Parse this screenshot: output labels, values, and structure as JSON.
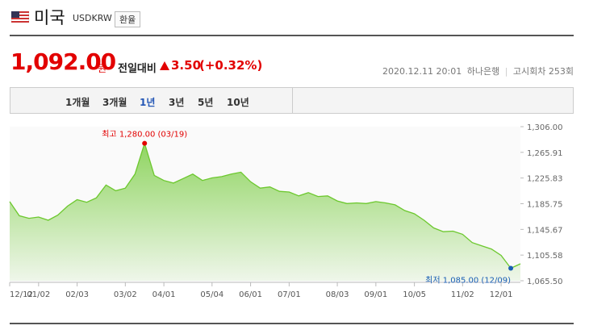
{
  "header": {
    "country": "미국",
    "code": "USDKRW",
    "button": "환율"
  },
  "quote": {
    "price": "1,092.00",
    "unit": "원",
    "change_label": "전일대비",
    "change": "3.50",
    "change_pct": "(+0.32%)"
  },
  "info": {
    "datetime": "2020.12.11 20:01",
    "bank": "하나은행",
    "round": "고시회차 253회"
  },
  "tabs": [
    "1개월",
    "3개월",
    "1년",
    "3년",
    "5년",
    "10년"
  ],
  "selected_tab": "1년",
  "chart_data": {
    "type": "line",
    "categories": [
      "12/12",
      null,
      null,
      "01/02",
      null,
      null,
      null,
      "02/03",
      null,
      null,
      null,
      null,
      "03/02",
      null,
      null,
      null,
      "04/01",
      null,
      null,
      null,
      null,
      "05/04",
      null,
      null,
      null,
      "06/01",
      null,
      null,
      null,
      "07/01",
      null,
      null,
      null,
      null,
      "08/03",
      null,
      null,
      null,
      "09/01",
      null,
      null,
      null,
      "10/05",
      null,
      null,
      null,
      null,
      "11/02",
      null,
      null,
      null,
      "12/01",
      null,
      null
    ],
    "values": [
      1189,
      1167,
      1163,
      1165,
      1160,
      1168,
      1182,
      1192,
      1188,
      1195,
      1215,
      1206,
      1210,
      1232,
      1280,
      1230,
      1222,
      1218,
      1225,
      1232,
      1222,
      1226,
      1228,
      1232,
      1235,
      1220,
      1210,
      1212,
      1205,
      1204,
      1198,
      1203,
      1197,
      1198,
      1190,
      1186,
      1187,
      1186,
      1189,
      1187,
      1184,
      1175,
      1170,
      1160,
      1148,
      1142,
      1143,
      1138,
      1125,
      1120,
      1115,
      1105,
      1085,
      1092
    ],
    "color": "#6cc82e",
    "ylim": [
      1065.5,
      1306
    ],
    "yticks": [
      {
        "value": 1065.5,
        "label": "1,065.50"
      },
      {
        "value": 1105.58,
        "label": "1,105.58"
      },
      {
        "value": 1145.67,
        "label": "1,145.67"
      },
      {
        "value": 1185.75,
        "label": "1,185.75"
      },
      {
        "value": 1225.83,
        "label": "1,225.83"
      },
      {
        "value": 1265.91,
        "label": "1,265.91"
      },
      {
        "value": 1306,
        "label": "1,306.00"
      }
    ],
    "annotations": [
      {
        "text": "최고 1,280.00 (03/19)",
        "index": 14,
        "color": "#e20000"
      },
      {
        "text": "최저 1,085.00 (12/09)",
        "index": 52,
        "color": "#1a5fb4"
      }
    ]
  }
}
